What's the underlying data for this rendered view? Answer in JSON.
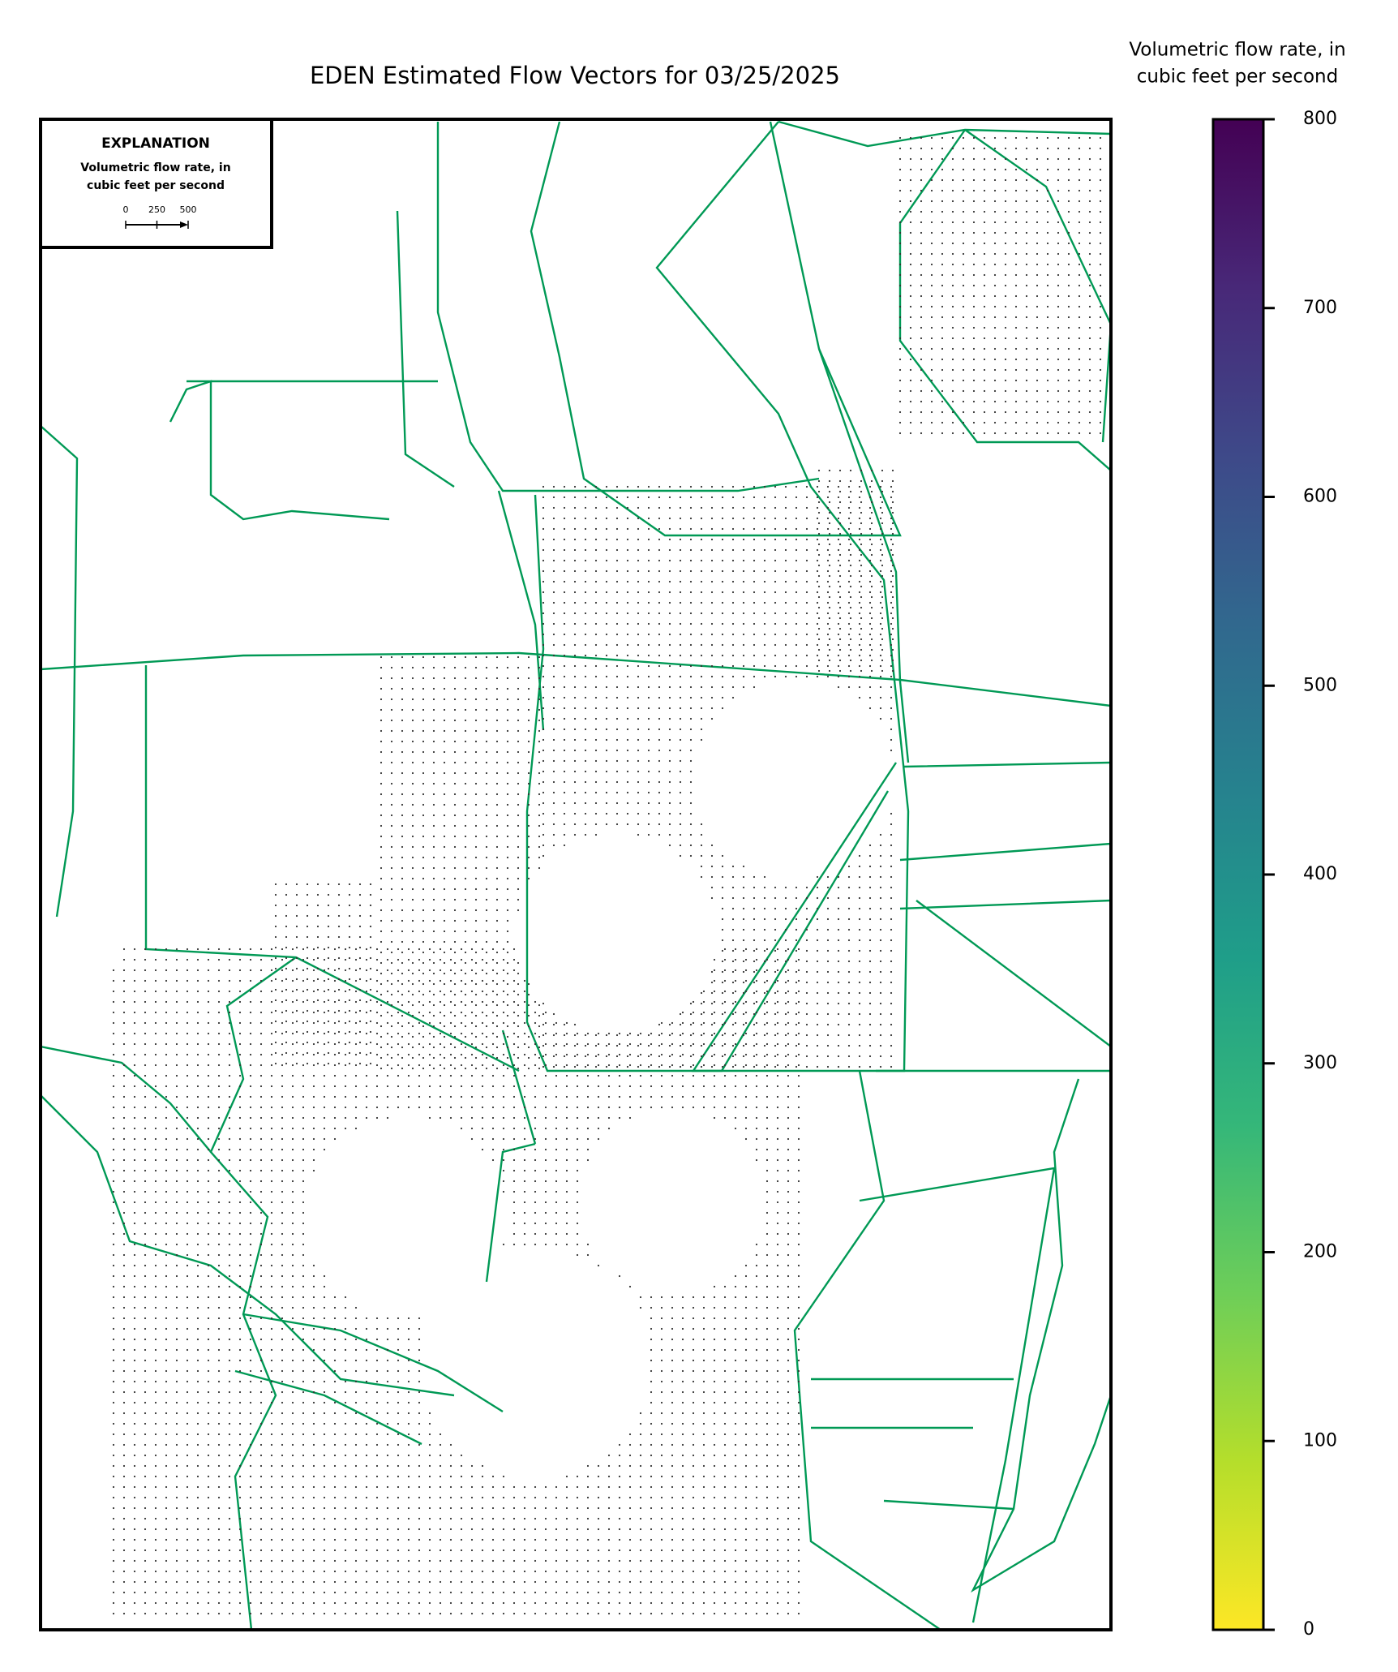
{
  "chart_data": {
    "type": "map",
    "title": "EDEN Estimated Flow Vectors for 03/25/2025",
    "colorbar": {
      "label": [
        "Volumetric flow rate, in",
        "cubic feet per second"
      ],
      "clim": [
        0,
        800
      ],
      "ticks": [
        0,
        100,
        200,
        300,
        400,
        500,
        600,
        700,
        800
      ],
      "colormap": [
        "#fde725",
        "#b5de2b",
        "#6ece58",
        "#35b779",
        "#1f9e89",
        "#26828e",
        "#31688e",
        "#3e4989",
        "#482878",
        "#440154"
      ]
    },
    "explanation": {
      "title": "EXPLANATION",
      "label": [
        "Volumetric flow rate, in",
        "cubic feet per second"
      ],
      "scale_ticks": [
        0,
        250,
        500
      ]
    },
    "canal_color": "#009955"
  }
}
